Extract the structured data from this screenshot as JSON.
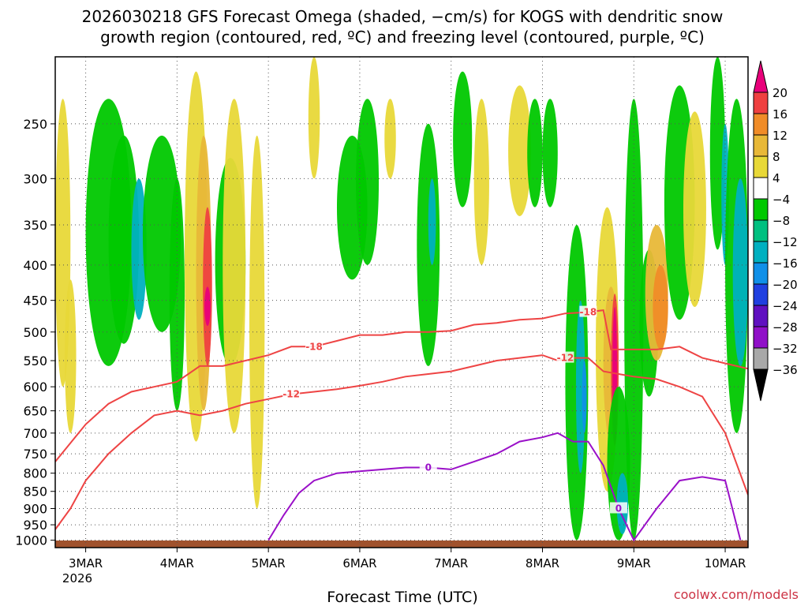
{
  "chart_data": {
    "type": "heatmap",
    "title_line1": "2026030218 GFS Forecast Omega (shaded, −cm/s) for KOGS with dendritic snow",
    "title_line2": "growth region (contoured, red, ºC) and freezing level (contoured, purple, ºC)",
    "xlabel": "Forecast Time (UTC)",
    "credit": "coolwx.com/models",
    "x_ticks": [
      "3MAR",
      "4MAR",
      "5MAR",
      "6MAR",
      "7MAR",
      "8MAR",
      "9MAR",
      "10MAR"
    ],
    "x_year": "2026",
    "y_ticks": [
      250,
      300,
      350,
      400,
      450,
      500,
      550,
      600,
      650,
      700,
      750,
      800,
      850,
      900,
      950,
      1000
    ],
    "xlim_hours": [
      -8,
      174
    ],
    "ylim_hpa": [
      200,
      1025
    ],
    "colorbar": {
      "levels": [
        20,
        16,
        12,
        8,
        4,
        -4,
        -8,
        -12,
        -16,
        -20,
        -24,
        -28,
        -32,
        -36
      ],
      "colors": [
        "#e8007a",
        "#ef4040",
        "#f08c28",
        "#e8b838",
        "#e8d838",
        "#ffffff",
        "#00c800",
        "#00c080",
        "#00b0c0",
        "#1090e8",
        "#2040e0",
        "#6010c0",
        "#9010c8",
        "#a8a8a8",
        "#000000"
      ]
    },
    "series": [
      {
        "name": "-18 C isotherm",
        "label": "-18",
        "color": "#ee4444",
        "hours": [
          -8,
          0,
          6,
          12,
          18,
          24,
          30,
          36,
          42,
          48,
          54,
          60,
          66,
          72,
          78,
          84,
          90,
          96,
          102,
          108,
          114,
          120,
          126,
          132,
          136,
          138,
          140,
          144,
          150,
          156,
          162,
          168,
          174
        ],
        "hpa": [
          770,
          680,
          635,
          610,
          600,
          590,
          560,
          560,
          550,
          540,
          525,
          525,
          515,
          505,
          505,
          500,
          500,
          498,
          488,
          485,
          480,
          478,
          470,
          468,
          465,
          530,
          530,
          530,
          530,
          525,
          545,
          555,
          565
        ]
      },
      {
        "name": "-12 C isotherm",
        "label": "-12",
        "color": "#ee4444",
        "hours": [
          -8,
          -4,
          0,
          6,
          12,
          18,
          24,
          30,
          36,
          42,
          48,
          54,
          60,
          66,
          72,
          78,
          84,
          90,
          96,
          102,
          108,
          114,
          120,
          124,
          126,
          132,
          136,
          140,
          144,
          150,
          156,
          162,
          168,
          174
        ],
        "hpa": [
          965,
          900,
          820,
          750,
          700,
          660,
          650,
          660,
          650,
          635,
          625,
          615,
          610,
          605,
          598,
          590,
          580,
          575,
          570,
          560,
          550,
          545,
          540,
          550,
          545,
          545,
          570,
          575,
          580,
          585,
          600,
          620,
          700,
          860
        ]
      },
      {
        "name": "0 C freezing level",
        "label": "0",
        "color": "#9a10c8",
        "hours": [
          48,
          52,
          56,
          60,
          66,
          72,
          78,
          84,
          90,
          96,
          102,
          108,
          114,
          120,
          124,
          128,
          132,
          136,
          140,
          144,
          150,
          156,
          162,
          168,
          172
        ],
        "hpa": [
          1000,
          920,
          855,
          820,
          800,
          795,
          790,
          785,
          785,
          790,
          770,
          750,
          720,
          710,
          700,
          720,
          720,
          780,
          900,
          1000,
          900,
          820,
          810,
          820,
          1000
        ]
      }
    ]
  }
}
